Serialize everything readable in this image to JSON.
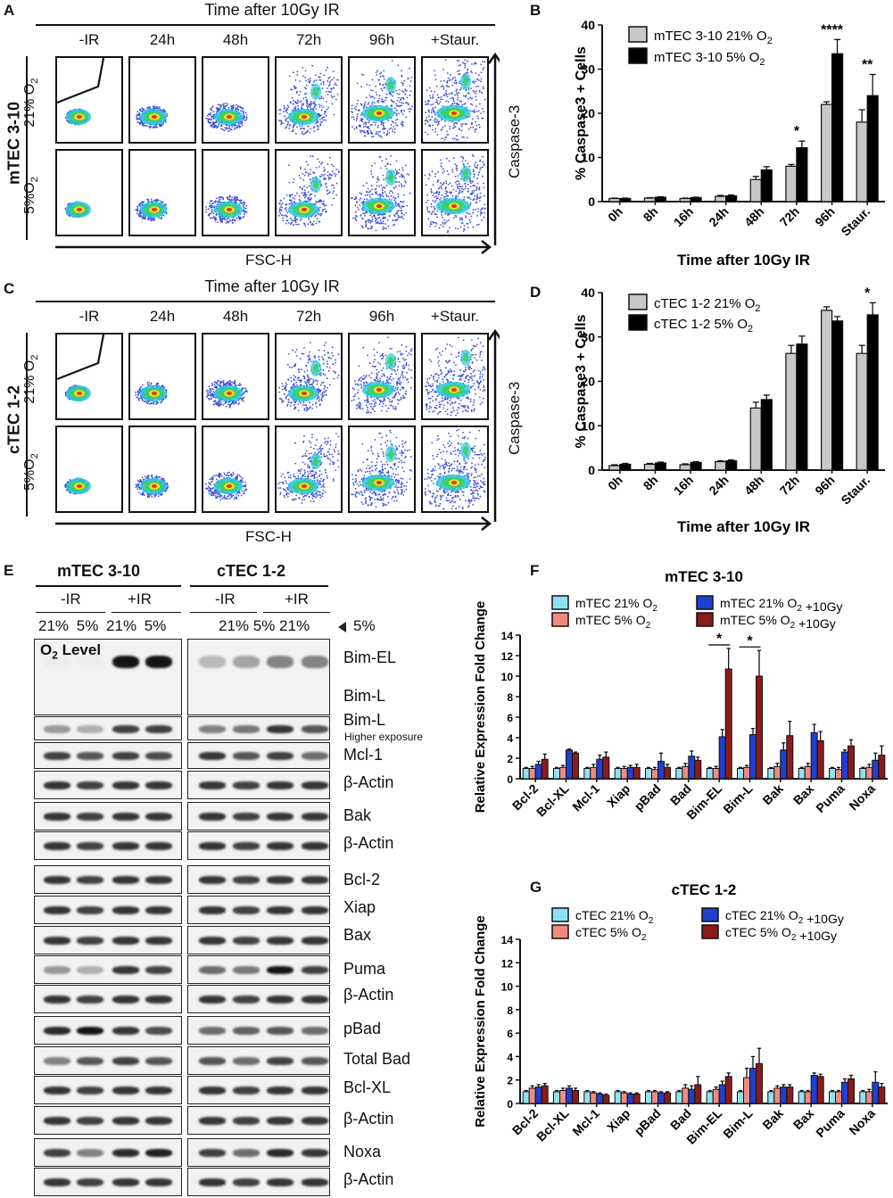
{
  "panels": {
    "A": "A",
    "B": "B",
    "C": "C",
    "D": "D",
    "E": "E",
    "F": "F",
    "G": "G"
  },
  "flow": {
    "title": "Time after 10Gy IR",
    "columns": [
      "-IR",
      "24h",
      "48h",
      "72h",
      "96h",
      "+Staur."
    ],
    "rows": [
      "21% O2",
      "5%O2"
    ],
    "x_axis": "FSC-H",
    "y_axis": "Caspase-3",
    "cell_lines": {
      "A": "mTEC 3-10",
      "C": "cTEC 1-2"
    }
  },
  "chart_data": [
    {
      "id": "B",
      "type": "bar",
      "categories": [
        "0h",
        "8h",
        "16h",
        "24h",
        "48h",
        "72h",
        "96h",
        "Staur."
      ],
      "series": [
        {
          "name": "mTEC 3-10 21% O2",
          "color": "#c8c8c8",
          "values": [
            0.7,
            0.8,
            0.7,
            1.2,
            5.0,
            8.0,
            22.0,
            18.0
          ],
          "errors": [
            0.1,
            0.1,
            0.1,
            0.2,
            0.7,
            0.4,
            0.6,
            2.8
          ]
        },
        {
          "name": "mTEC 3-10 5% O2",
          "color": "#000000",
          "values": [
            0.7,
            1.0,
            0.9,
            1.3,
            7.2,
            12.2,
            33.5,
            24.0
          ],
          "errors": [
            0.1,
            0.1,
            0.1,
            0.2,
            0.7,
            1.5,
            3.2,
            4.8
          ]
        }
      ],
      "significance": [
        {
          "category": "72h",
          "label": "*"
        },
        {
          "category": "96h",
          "label": "****"
        },
        {
          "category": "Staur.",
          "label": "**"
        }
      ],
      "xlabel": "Time after 10Gy IR",
      "ylabel": "% Caspase3 + Cells",
      "ylim": [
        0,
        40
      ],
      "yticks": [
        0,
        10,
        20,
        30,
        40
      ]
    },
    {
      "id": "D",
      "type": "bar",
      "categories": [
        "0h",
        "8h",
        "16h",
        "24h",
        "48h",
        "72h",
        "96h",
        "Staur."
      ],
      "series": [
        {
          "name": "cTEC 1-2 21% O2",
          "color": "#c8c8c8",
          "values": [
            1.0,
            1.3,
            1.2,
            1.9,
            14.0,
            26.3,
            36.0,
            26.3
          ],
          "errors": [
            0.2,
            0.2,
            0.2,
            0.2,
            1.3,
            1.8,
            0.8,
            1.8
          ]
        },
        {
          "name": "cTEC 1-2 5% O2",
          "color": "#000000",
          "values": [
            1.3,
            1.6,
            1.7,
            2.1,
            15.9,
            28.4,
            33.6,
            35.0
          ],
          "errors": [
            0.2,
            0.2,
            0.2,
            0.2,
            1.0,
            1.8,
            1.0,
            2.7
          ]
        }
      ],
      "significance": [
        {
          "category": "Staur.",
          "label": "*"
        }
      ],
      "xlabel": "Time after 10Gy IR",
      "ylabel": "% Caspase3 + Cells",
      "ylim": [
        0,
        40
      ],
      "yticks": [
        0,
        10,
        20,
        30,
        40
      ]
    },
    {
      "id": "F",
      "type": "bar",
      "title": "mTEC 3-10",
      "categories": [
        "Bcl-2",
        "Bcl-XL",
        "Mcl-1",
        "Xiap",
        "pBad",
        "Bad",
        "Bim-EL",
        "Bim-L",
        "Bak",
        "Bax",
        "Puma",
        "Noxa"
      ],
      "series": [
        {
          "name": "mTEC 21% O2",
          "color": "#8fe3f0",
          "values": [
            1.0,
            1.0,
            1.0,
            1.0,
            1.0,
            1.0,
            1.0,
            1.0,
            1.0,
            1.0,
            1.0,
            1.0
          ],
          "errors": [
            0.1,
            0.1,
            0.1,
            0.1,
            0.1,
            0.1,
            0.1,
            0.1,
            0.1,
            0.1,
            0.1,
            0.1
          ]
        },
        {
          "name": "mTEC 5% O2",
          "color": "#f08a80",
          "values": [
            1.0,
            1.1,
            1.1,
            1.0,
            0.9,
            1.2,
            1.0,
            1.1,
            1.2,
            1.2,
            0.9,
            1.1
          ],
          "errors": [
            0.2,
            0.2,
            0.3,
            0.2,
            0.2,
            0.3,
            0.2,
            0.2,
            0.3,
            0.3,
            0.2,
            0.3
          ]
        },
        {
          "name": "mTEC 21% O2 +10Gy",
          "color": "#1f3fd0",
          "values": [
            1.4,
            2.8,
            1.9,
            1.1,
            1.7,
            2.2,
            4.1,
            4.3,
            2.8,
            4.5,
            2.6,
            1.8
          ],
          "errors": [
            0.3,
            0.1,
            0.4,
            0.2,
            0.8,
            0.5,
            0.7,
            0.6,
            0.7,
            0.8,
            0.2,
            0.7
          ]
        },
        {
          "name": "mTEC 5% O2 +10Gy",
          "color": "#8b1a1a",
          "values": [
            1.9,
            2.5,
            2.1,
            1.1,
            1.1,
            1.8,
            10.7,
            10.0,
            4.2,
            3.7,
            3.2,
            2.3
          ],
          "errors": [
            0.5,
            0.1,
            0.5,
            0.3,
            0.3,
            0.3,
            2.0,
            2.5,
            1.4,
            0.9,
            0.6,
            0.9
          ]
        }
      ],
      "significance": [
        {
          "category": "Bim-EL",
          "label": "*"
        },
        {
          "category": "Bim-L",
          "label": "*"
        }
      ],
      "xlabel": "",
      "ylabel": "Relative Expression Fold Change",
      "ylim": [
        0,
        14
      ],
      "yticks": [
        0,
        2,
        4,
        6,
        8,
        10,
        12,
        14
      ]
    },
    {
      "id": "G",
      "type": "bar",
      "title": "cTEC 1-2",
      "categories": [
        "Bcl-2",
        "Bcl-XL",
        "Mcl-1",
        "Xiap",
        "pBad",
        "Bad",
        "Bim-EL",
        "Bim-L",
        "Bak",
        "Bax",
        "Puma",
        "Noxa"
      ],
      "series": [
        {
          "name": "cTEC 21% O2",
          "color": "#8fe3f0",
          "values": [
            1.0,
            1.0,
            1.0,
            1.0,
            1.0,
            1.0,
            1.0,
            1.0,
            1.0,
            1.0,
            1.0,
            1.0
          ],
          "errors": [
            0.1,
            0.1,
            0.1,
            0.1,
            0.1,
            0.1,
            0.1,
            0.1,
            0.1,
            0.1,
            0.1,
            0.1
          ]
        },
        {
          "name": "cTEC 5% O2",
          "color": "#f08a80",
          "values": [
            1.3,
            1.1,
            0.9,
            0.9,
            1.0,
            1.3,
            1.2,
            2.2,
            1.3,
            1.0,
            1.0,
            1.0
          ],
          "errors": [
            0.2,
            0.2,
            0.1,
            0.1,
            0.1,
            0.3,
            0.2,
            0.8,
            0.2,
            0.1,
            0.1,
            0.2
          ]
        },
        {
          "name": "cTEC 21% O2 +10Gy",
          "color": "#1f3fd0",
          "values": [
            1.4,
            1.3,
            0.8,
            0.8,
            0.9,
            1.2,
            1.6,
            3.0,
            1.4,
            2.4,
            1.8,
            1.8
          ],
          "errors": [
            0.2,
            0.2,
            0.1,
            0.1,
            0.1,
            0.3,
            0.3,
            1.0,
            0.2,
            0.2,
            0.3,
            0.9
          ]
        },
        {
          "name": "cTEC 5% O2 +10Gy",
          "color": "#8b1a1a",
          "values": [
            1.5,
            1.1,
            0.7,
            0.8,
            0.9,
            1.6,
            2.3,
            3.4,
            1.4,
            2.3,
            2.1,
            1.4
          ],
          "errors": [
            0.2,
            0.2,
            0.1,
            0.1,
            0.1,
            0.7,
            0.3,
            1.3,
            0.2,
            0.2,
            0.3,
            0.3
          ]
        }
      ],
      "xlabel": "",
      "ylabel": "Relative Expression Fold Change",
      "ylim": [
        0,
        14
      ],
      "yticks": [
        0,
        2,
        4,
        6,
        8,
        10,
        12,
        14
      ]
    }
  ],
  "western": {
    "left_title": "mTEC 3-10",
    "right_title": "cTEC 1-2",
    "minus_ir": "-IR",
    "plus_ir": "+IR",
    "o2_left": "21%  5%  21%  5%",
    "o2_right": "21%    5%  21%",
    "o2_last": "5%",
    "o2_level": "O2 Level",
    "rows": [
      {
        "label": "Bim-EL"
      },
      {
        "label": "Bim-L"
      },
      {
        "label": "Bim-L",
        "sub": "Higher exposure"
      },
      {
        "label": "Mcl-1"
      },
      {
        "label": "β-Actin"
      },
      {
        "label": "Bak"
      },
      {
        "label": "β-Actin"
      },
      {
        "label": "Bcl-2"
      },
      {
        "label": "Xiap"
      },
      {
        "label": "Bax"
      },
      {
        "label": "Puma"
      },
      {
        "label": "β-Actin"
      },
      {
        "label": "pBad"
      },
      {
        "label": "Total Bad"
      },
      {
        "label": "Bcl-XL"
      },
      {
        "label": "β-Actin"
      },
      {
        "label": "Noxa"
      },
      {
        "label": "β-Actin"
      }
    ]
  }
}
